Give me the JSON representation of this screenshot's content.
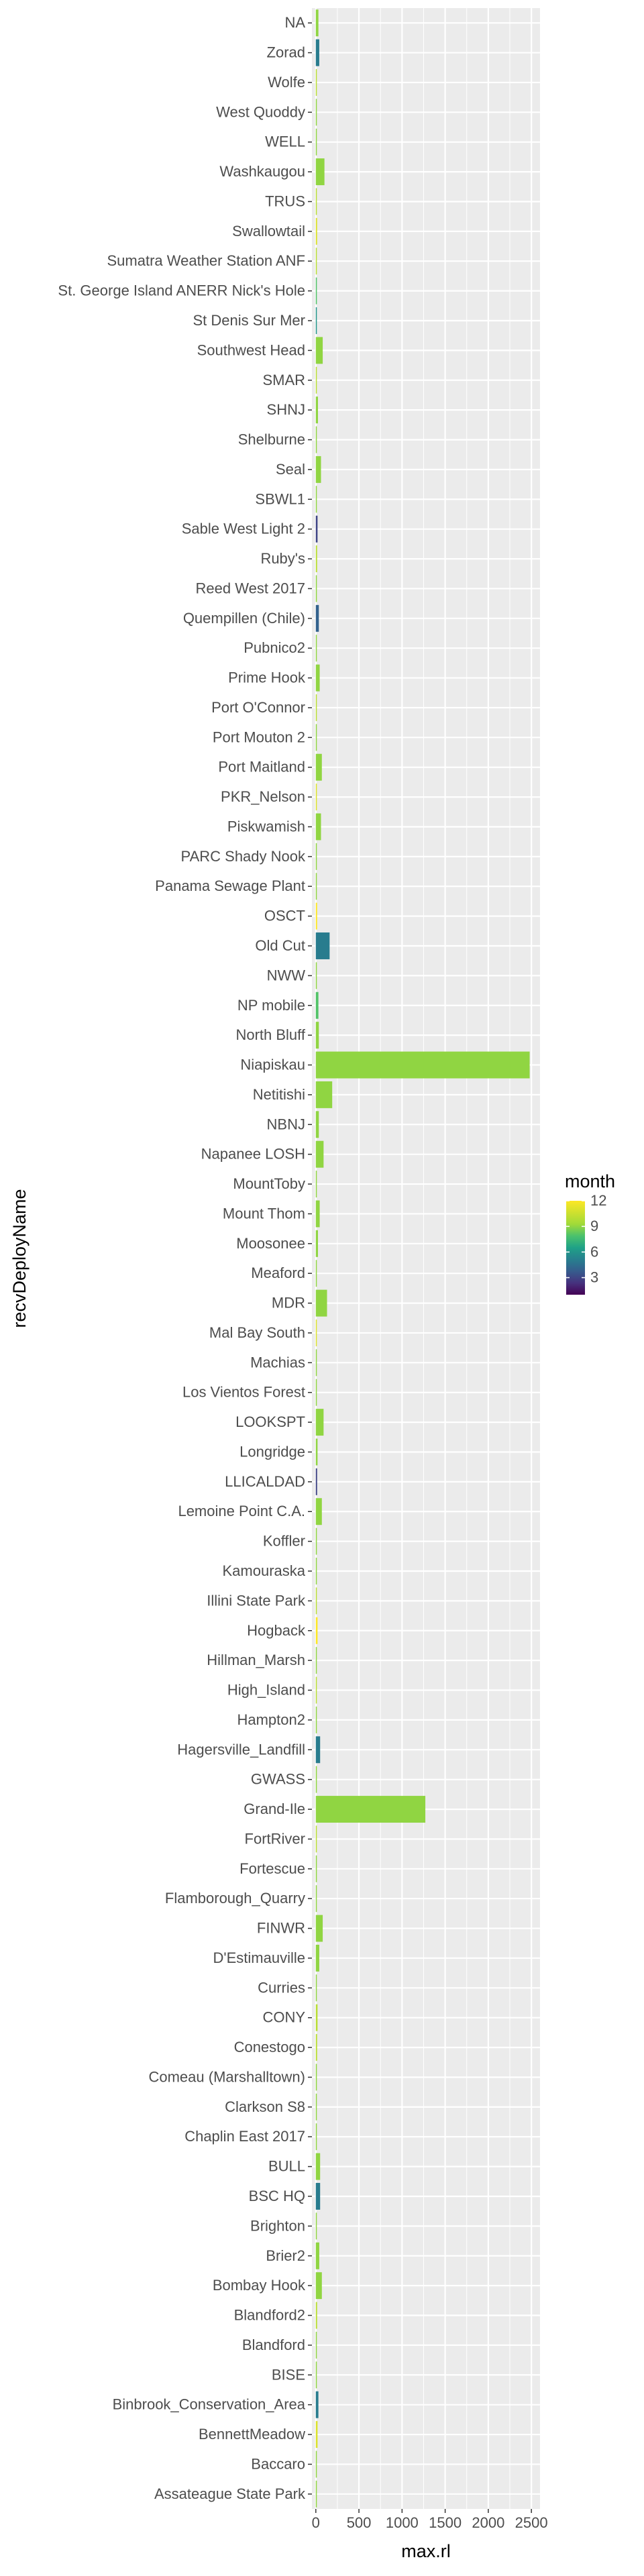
{
  "chart_data": {
    "type": "bar",
    "orientation": "horizontal",
    "xlabel": "max.rl",
    "ylabel": "recvDeployName",
    "xlim": [
      -45,
      2600
    ],
    "xticks": [
      0,
      500,
      1000,
      1500,
      2000,
      2500
    ],
    "grid": true,
    "legend": {
      "title": "month",
      "placement": "right",
      "type": "colorbar",
      "ticks": [
        3,
        6,
        9,
        12
      ],
      "range": [
        1,
        12
      ]
    },
    "categories": [
      "NA",
      "Zorad",
      "Wolfe",
      "West Quoddy",
      "WELL",
      "Washkaugou",
      "TRUS",
      "Swallowtail",
      "Sumatra Weather Station ANF",
      "St. George Island ANERR Nick's Hole",
      "St Denis Sur Mer",
      "Southwest Head",
      "SMAR",
      "SHNJ",
      "Shelburne",
      "Seal",
      "SBWL1",
      "Sable West Light 2",
      "Ruby's",
      "Reed West 2017",
      "Quempillen (Chile)",
      "Pubnico2",
      "Prime Hook",
      "Port O'Connor",
      "Port Mouton 2",
      "Port Maitland",
      "PKR_Nelson",
      "Piskwamish",
      "PARC Shady Nook",
      "Panama Sewage Plant",
      "OSCT",
      "Old Cut",
      "NWW",
      "NP mobile",
      "North Bluff",
      "Niapiskau",
      "Netitishi",
      "NBNJ",
      "Napanee LOSH",
      "MountToby",
      "Mount Thom",
      "Moosonee",
      "Meaford",
      "MDR",
      "Mal Bay South",
      "Machias",
      "Los Vientos Forest",
      "LOOKSPT",
      "Longridge",
      "LLICALDAD",
      "Lemoine Point C.A.",
      "Koffler",
      "Kamouraska",
      "Illini State Park",
      "Hogback",
      "Hillman_Marsh",
      "High_Island",
      "Hampton2",
      "Hagersville_Landfill",
      "GWASS",
      "Grand-Ile",
      "FortRiver",
      "Fortescue",
      "Flamborough_Quarry",
      "FINWR",
      "D'Estimauville",
      "Curries",
      "CONY",
      "Conestogo",
      "Comeau (Marshalltown)",
      "Clarkson S8",
      "Chaplin East 2017",
      "BULL",
      "BSC HQ",
      "Brighton",
      "Brier2",
      "Bombay Hook",
      "Blandford2",
      "Blandford",
      "BISE",
      "Binbrook_Conservation_Area",
      "BennettMeadow",
      "Baccaro",
      "Assateague State Park"
    ],
    "values": [
      30,
      40,
      5,
      5,
      5,
      100,
      10,
      15,
      8,
      12,
      10,
      80,
      5,
      25,
      8,
      60,
      6,
      20,
      15,
      12,
      35,
      5,
      45,
      10,
      10,
      70,
      12,
      60,
      5,
      5,
      15,
      160,
      6,
      30,
      35,
      2480,
      190,
      35,
      90,
      5,
      45,
      25,
      5,
      130,
      5,
      8,
      6,
      90,
      20,
      15,
      70,
      12,
      5,
      4,
      20,
      5,
      4,
      8,
      50,
      12,
      1270,
      10,
      12,
      6,
      80,
      40,
      6,
      20,
      15,
      12,
      6,
      8,
      50,
      50,
      5,
      40,
      70,
      15,
      5,
      8,
      30,
      20,
      5,
      5
    ],
    "month": [
      9,
      5,
      10,
      9,
      9,
      9,
      10,
      11,
      10,
      8,
      6,
      9,
      10,
      9,
      9,
      9,
      9,
      3,
      10,
      9,
      4,
      9,
      9,
      10,
      9,
      9,
      11,
      9,
      9,
      9,
      12,
      5,
      9,
      8,
      9,
      9,
      9,
      9,
      9,
      9,
      9,
      9,
      9,
      9,
      11,
      9,
      9,
      9,
      9,
      3,
      9,
      9,
      9,
      10,
      12,
      9,
      10,
      9,
      5,
      9,
      9,
      10,
      9,
      9,
      9,
      9,
      9,
      10,
      10,
      9,
      9,
      9,
      9,
      5,
      9,
      9,
      9,
      10,
      9,
      9,
      5,
      11,
      9,
      9
    ]
  }
}
